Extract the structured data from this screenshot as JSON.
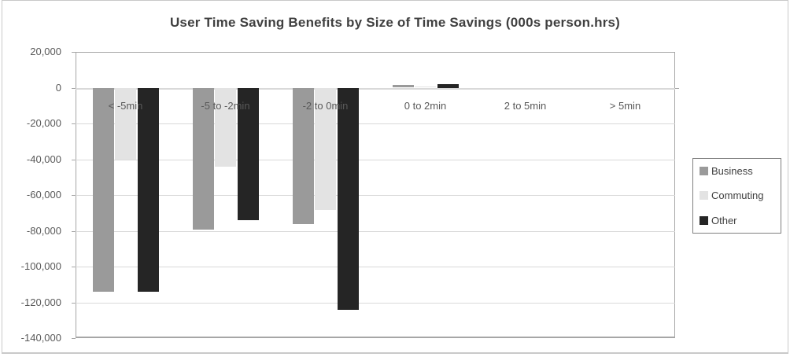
{
  "title": "User Time Saving Benefits by Size of Time Savings (000s person.hrs)",
  "chart_data": {
    "type": "bar",
    "title": "User Time Saving Benefits by Size of Time Savings (000s person.hrs)",
    "categories": [
      "< -5min",
      "-5 to -2min",
      "-2 to 0min",
      "0 to 2min",
      "2 to 5min",
      "> 5min"
    ],
    "series": [
      {
        "name": "Business",
        "color": "#9a9a9a",
        "values": [
          -114000,
          -79000,
          -76000,
          1500,
          0,
          0
        ]
      },
      {
        "name": "Commuting",
        "color": "#e3e3e3",
        "values": [
          -40000,
          -44000,
          -68000,
          500,
          0,
          0
        ]
      },
      {
        "name": "Other",
        "color": "#252525",
        "values": [
          -114000,
          -74000,
          -124000,
          2000,
          0,
          0
        ]
      }
    ],
    "xlabel": "",
    "ylabel": "",
    "ylim": [
      -140000,
      20000
    ],
    "ytick_step": 20000,
    "ytick_labels": [
      "20,000",
      "0",
      "-20,000",
      "-40,000",
      "-60,000",
      "-80,000",
      "-100,000",
      "-120,000",
      "-140,000"
    ],
    "grid": "horizontal",
    "legend_position": "right",
    "legend_labels": [
      "Business",
      "Commuting",
      "Other"
    ]
  },
  "colors": {
    "grid": "#d9d9d9",
    "plot_border": "#a6a6a6",
    "axis_text": "#595959",
    "title_text": "#404040",
    "legend_border": "#7f7f7f",
    "legend_text": "#3f3f3f",
    "outer_border": "#c9c9c9",
    "background": "#ffffff"
  }
}
